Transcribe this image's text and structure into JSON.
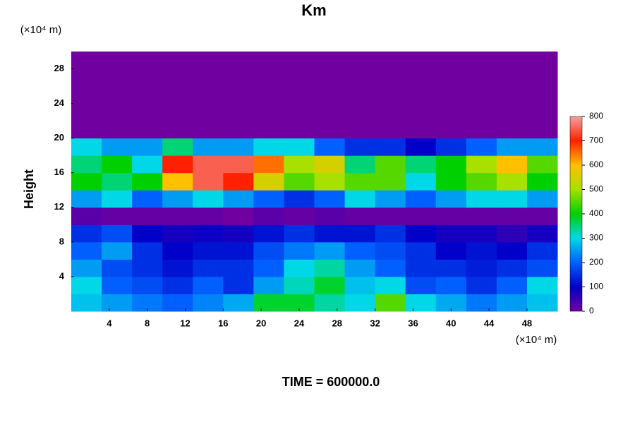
{
  "chart_data": {
    "type": "heatmap",
    "title": "Km",
    "ylabel": "Height",
    "yunit": "(×10⁴ m)",
    "xunit": "(×10⁴ m)",
    "footer": "TIME = 600000.0",
    "xbins": [
      0,
      3.2,
      6.4,
      9.6,
      12.8,
      16,
      19.2,
      22.4,
      25.6,
      28.8,
      32,
      35.2,
      38.4,
      41.6,
      44.8,
      48,
      51.2
    ],
    "ybins": [
      0,
      2,
      4,
      6,
      8,
      10,
      12,
      14,
      16,
      18,
      20,
      22,
      24,
      26,
      28,
      30
    ],
    "z": [
      [
        280,
        250,
        220,
        200,
        230,
        260,
        380,
        380,
        330,
        300,
        450,
        300,
        260,
        220,
        250,
        280
      ],
      [
        300,
        200,
        180,
        150,
        200,
        150,
        250,
        320,
        380,
        280,
        300,
        180,
        200,
        150,
        200,
        300
      ],
      [
        250,
        180,
        150,
        120,
        150,
        150,
        200,
        300,
        330,
        250,
        200,
        150,
        150,
        130,
        150,
        180
      ],
      [
        200,
        250,
        150,
        100,
        120,
        120,
        180,
        220,
        250,
        200,
        180,
        150,
        100,
        120,
        100,
        150
      ],
      [
        150,
        180,
        100,
        80,
        90,
        80,
        120,
        150,
        120,
        120,
        150,
        100,
        80,
        80,
        60,
        80
      ],
      [
        20,
        10,
        10,
        10,
        10,
        0,
        20,
        10,
        20,
        10,
        10,
        10,
        10,
        10,
        10,
        10
      ],
      [
        250,
        300,
        200,
        250,
        300,
        250,
        200,
        150,
        200,
        300,
        250,
        200,
        250,
        300,
        300,
        250
      ],
      [
        400,
        350,
        400,
        600,
        750,
        700,
        550,
        450,
        500,
        450,
        450,
        300,
        400,
        450,
        500,
        400
      ],
      [
        350,
        400,
        300,
        700,
        750,
        750,
        650,
        500,
        550,
        350,
        450,
        350,
        400,
        500,
        600,
        450
      ],
      [
        300,
        250,
        250,
        350,
        250,
        250,
        300,
        300,
        200,
        150,
        150,
        100,
        150,
        200,
        250,
        250
      ],
      [
        0,
        0,
        0,
        0,
        0,
        0,
        0,
        0,
        0,
        0,
        0,
        0,
        0,
        0,
        0,
        0
      ],
      [
        0,
        0,
        0,
        0,
        0,
        0,
        0,
        0,
        0,
        0,
        0,
        0,
        0,
        0,
        0,
        0
      ],
      [
        0,
        0,
        0,
        0,
        0,
        0,
        0,
        0,
        0,
        0,
        0,
        0,
        0,
        0,
        0,
        0
      ],
      [
        0,
        0,
        0,
        0,
        0,
        0,
        0,
        0,
        0,
        0,
        0,
        0,
        0,
        0,
        0,
        0
      ],
      [
        0,
        0,
        0,
        0,
        0,
        0,
        0,
        0,
        0,
        0,
        0,
        0,
        0,
        0,
        0,
        0
      ]
    ],
    "xlim": [
      0,
      51.2
    ],
    "ylim": [
      0,
      30
    ],
    "xticks": [
      4,
      8,
      12,
      16,
      20,
      24,
      28,
      32,
      36,
      40,
      44,
      48
    ],
    "yticks": [
      4,
      8,
      12,
      16,
      20,
      24,
      28
    ],
    "clim": [
      0,
      800
    ],
    "cticks": [
      0,
      100,
      200,
      300,
      400,
      500,
      600,
      700,
      800
    ],
    "colorscale": [
      "#7000a0",
      "#0000c8",
      "#0060ff",
      "#00d8e8",
      "#00d000",
      "#a8e000",
      "#ffc000",
      "#ff2000",
      "#f4a0a0"
    ]
  }
}
